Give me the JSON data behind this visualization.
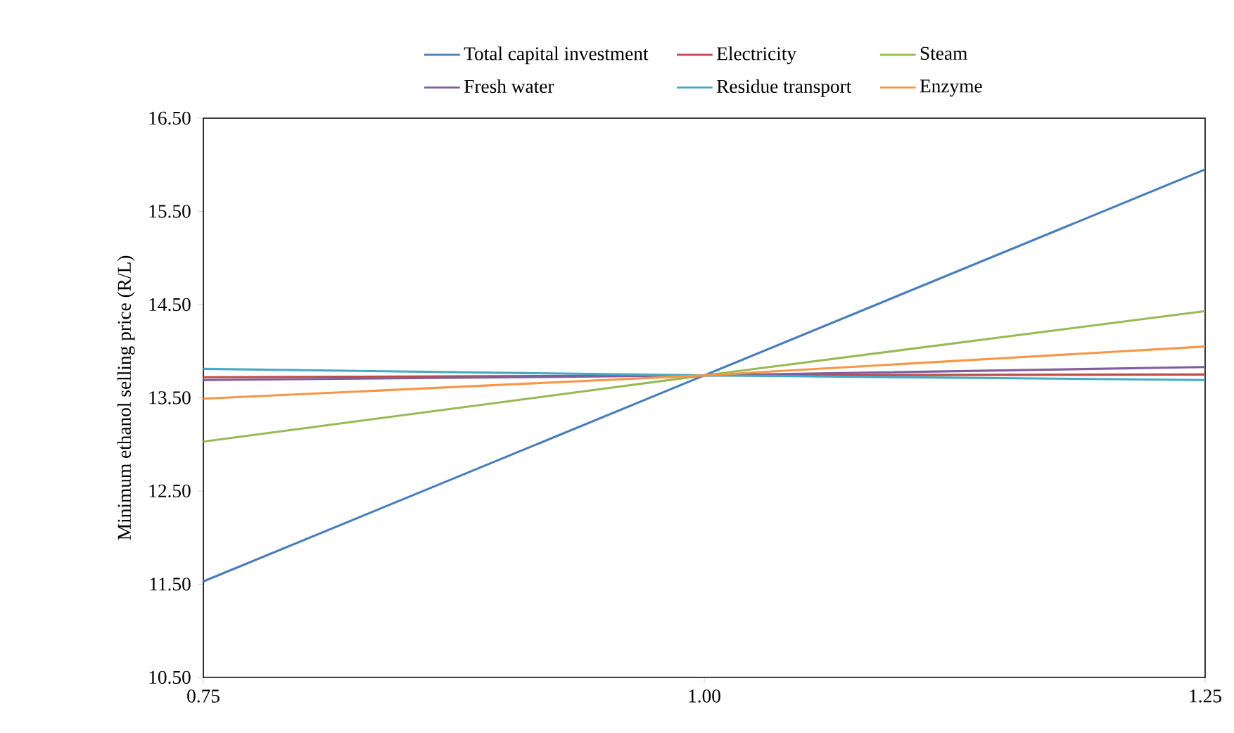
{
  "chart_data": {
    "type": "line",
    "ylabel": "Minimum ethanol selling price (R/L)",
    "x": [
      0.75,
      1.0,
      1.25
    ],
    "xlim": [
      0.75,
      1.25
    ],
    "xticks": [
      {
        "value": 0.75,
        "label": "0.75"
      },
      {
        "value": 1.0,
        "label": "1.00"
      },
      {
        "value": 1.25,
        "label": "1.25"
      }
    ],
    "ylim": [
      10.5,
      16.5
    ],
    "yticks": [
      {
        "value": 10.5,
        "label": "10.50"
      },
      {
        "value": 11.5,
        "label": "11.50"
      },
      {
        "value": 12.5,
        "label": "12.50"
      },
      {
        "value": 13.5,
        "label": "13.50"
      },
      {
        "value": 14.5,
        "label": "14.50"
      },
      {
        "value": 15.5,
        "label": "15.50"
      },
      {
        "value": 16.5,
        "label": "16.50"
      }
    ],
    "legend": "top",
    "series": [
      {
        "name": "Total capital investment",
        "color": "#4a7ebb",
        "values": [
          11.53,
          13.74,
          15.95
        ]
      },
      {
        "name": "Electricity",
        "color": "#be4b48",
        "values": [
          13.72,
          13.74,
          13.75
        ]
      },
      {
        "name": "Steam",
        "color": "#98b954",
        "values": [
          13.03,
          13.74,
          14.43
        ]
      },
      {
        "name": "Fresh water",
        "color": "#7d60a0",
        "values": [
          13.69,
          13.74,
          13.83
        ]
      },
      {
        "name": "Residue transport",
        "color": "#46aac5",
        "values": [
          13.81,
          13.74,
          13.69
        ]
      },
      {
        "name": "Enzyme",
        "color": "#f79646",
        "values": [
          13.49,
          13.74,
          14.05
        ]
      }
    ]
  }
}
